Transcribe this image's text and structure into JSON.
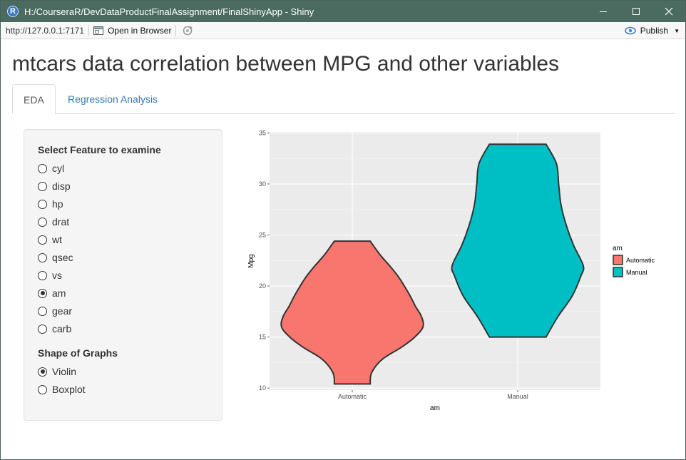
{
  "window": {
    "title": "H:/CourseraR/DevDataProductFinalAssignment/FinalShinyApp - Shiny",
    "app_icon_letter": "R"
  },
  "toolbar": {
    "url": "http://127.0.0.1:7171",
    "open_browser_label": "Open in Browser",
    "publish_label": "Publish"
  },
  "page": {
    "title": "mtcars data correlation between MPG and other variables"
  },
  "tabs": [
    {
      "label": "EDA",
      "active": true
    },
    {
      "label": "Regression Analysis",
      "active": false
    }
  ],
  "sidebar": {
    "feature_label": "Select Feature to examine",
    "features": [
      {
        "label": "cyl",
        "checked": false
      },
      {
        "label": "disp",
        "checked": false
      },
      {
        "label": "hp",
        "checked": false
      },
      {
        "label": "drat",
        "checked": false
      },
      {
        "label": "wt",
        "checked": false
      },
      {
        "label": "qsec",
        "checked": false
      },
      {
        "label": "vs",
        "checked": false
      },
      {
        "label": "am",
        "checked": true
      },
      {
        "label": "gear",
        "checked": false
      },
      {
        "label": "carb",
        "checked": false
      }
    ],
    "shape_label": "Shape of Graphs",
    "shapes": [
      {
        "label": "Violin",
        "checked": true
      },
      {
        "label": "Boxplot",
        "checked": false
      }
    ]
  },
  "chart_data": {
    "type": "violin",
    "xlabel": "am",
    "ylabel": "Mpg",
    "categories": [
      "Automatic",
      "Manual"
    ],
    "ylim": [
      9.8,
      35.1
    ],
    "yticks": [
      10,
      15,
      20,
      25,
      30,
      35
    ],
    "grid": true,
    "legend": {
      "title": "am",
      "placement": "right",
      "entries": [
        "Automatic",
        "Manual"
      ]
    },
    "colors": {
      "Automatic": "#f8766d",
      "Manual": "#00bfc4"
    },
    "series": [
      {
        "name": "Automatic",
        "min": 10.4,
        "max": 24.4,
        "profile": [
          [
            10.4,
            0.24
          ],
          [
            11.5,
            0.26
          ],
          [
            12.8,
            0.4
          ],
          [
            14.0,
            0.66
          ],
          [
            15.0,
            0.84
          ],
          [
            16.0,
            0.95
          ],
          [
            17.0,
            0.93
          ],
          [
            18.0,
            0.85
          ],
          [
            19.0,
            0.78
          ],
          [
            20.0,
            0.7
          ],
          [
            21.0,
            0.61
          ],
          [
            22.0,
            0.5
          ],
          [
            23.0,
            0.38
          ],
          [
            24.0,
            0.28
          ],
          [
            24.4,
            0.24
          ]
        ]
      },
      {
        "name": "Manual",
        "min": 15.0,
        "max": 33.9,
        "profile": [
          [
            15.0,
            0.38
          ],
          [
            17.0,
            0.54
          ],
          [
            19.0,
            0.73
          ],
          [
            21.0,
            0.85
          ],
          [
            22.0,
            0.88
          ],
          [
            24.0,
            0.75
          ],
          [
            26.0,
            0.65
          ],
          [
            28.0,
            0.58
          ],
          [
            30.0,
            0.55
          ],
          [
            32.0,
            0.52
          ],
          [
            33.9,
            0.38
          ]
        ]
      }
    ]
  }
}
